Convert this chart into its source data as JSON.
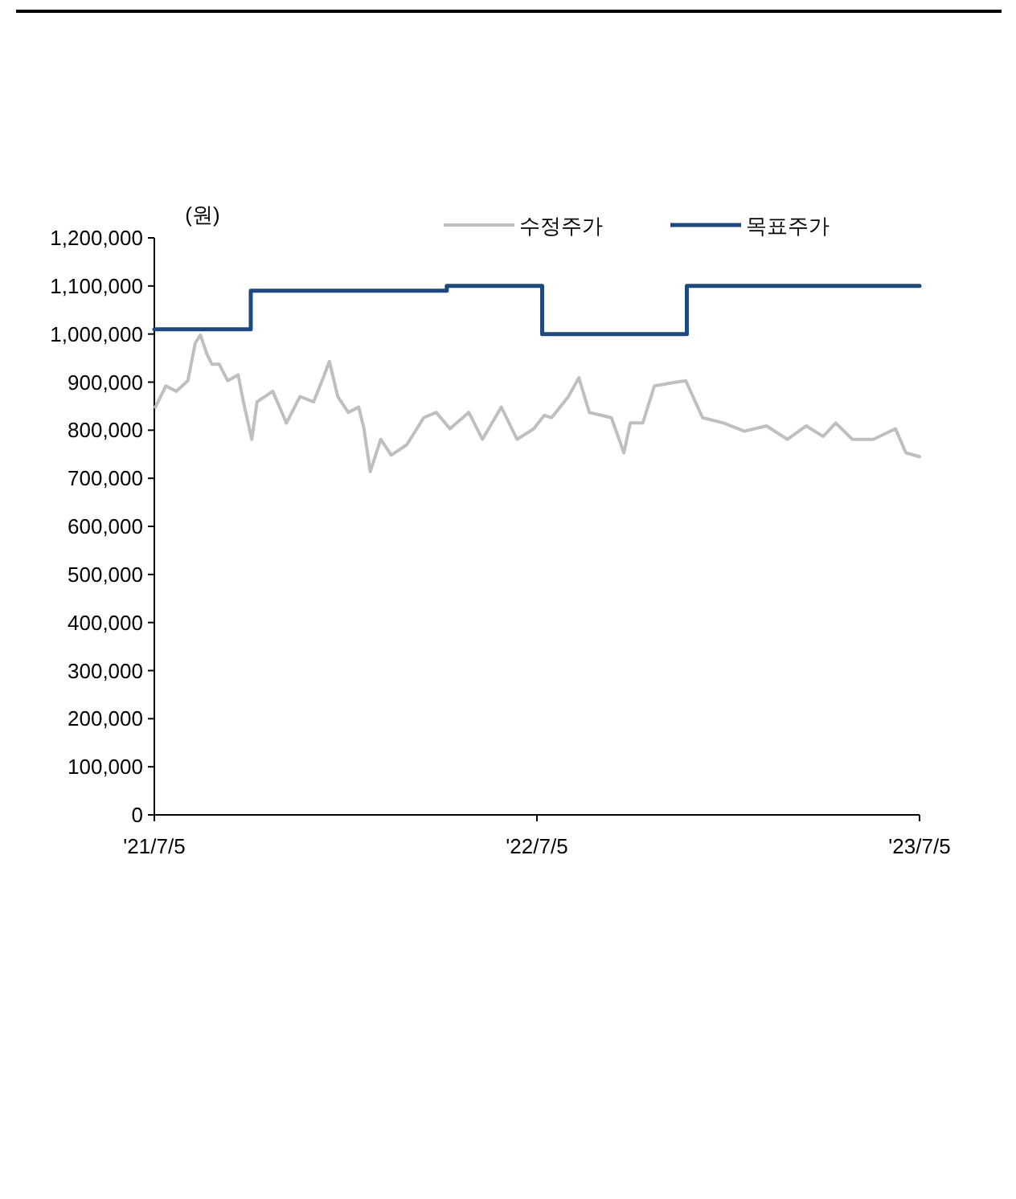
{
  "chart_data": {
    "type": "line",
    "ylabel": "(원)",
    "legend": "top",
    "marker": "none",
    "line_style": "solid",
    "grid": false,
    "xlim": [
      "2021-07-05",
      "2023-07-05"
    ],
    "xticks": [
      {
        "value": "2021-07-05",
        "label": "'21/7/5"
      },
      {
        "value": "2022-07-05",
        "label": "'22/7/5"
      },
      {
        "value": "2023-07-05",
        "label": "'23/7/5"
      }
    ],
    "ylim": [
      0,
      1200000
    ],
    "yticks": [
      {
        "value": 0,
        "label": "0"
      },
      {
        "value": 100000,
        "label": "100,000"
      },
      {
        "value": 200000,
        "label": "200,000"
      },
      {
        "value": 300000,
        "label": "300,000"
      },
      {
        "value": 400000,
        "label": "400,000"
      },
      {
        "value": 500000,
        "label": "500,000"
      },
      {
        "value": 600000,
        "label": "600,000"
      },
      {
        "value": 700000,
        "label": "700,000"
      },
      {
        "value": 800000,
        "label": "800,000"
      },
      {
        "value": 900000,
        "label": "900,000"
      },
      {
        "value": 1000000,
        "label": "1,000,000"
      },
      {
        "value": 1100000,
        "label": "1,100,000"
      },
      {
        "value": 1200000,
        "label": "1,200,000"
      }
    ],
    "series": [
      {
        "name": "수정주가",
        "color": "#bfbfbf",
        "x": [
          "2021-07-06",
          "2021-07-16",
          "2021-07-26",
          "2021-08-06",
          "2021-08-13",
          "2021-08-18",
          "2021-08-24",
          "2021-08-29",
          "2021-09-05",
          "2021-09-13",
          "2021-09-23",
          "2021-09-28",
          "2021-10-06",
          "2021-10-11",
          "2021-10-26",
          "2021-11-08",
          "2021-11-21",
          "2021-12-04",
          "2021-12-12",
          "2021-12-19",
          "2021-12-27",
          "2022-01-06",
          "2022-01-16",
          "2022-01-21",
          "2022-01-27",
          "2022-02-06",
          "2022-02-16",
          "2022-03-03",
          "2022-03-19",
          "2022-03-31",
          "2022-04-13",
          "2022-05-01",
          "2022-05-14",
          "2022-06-01",
          "2022-06-16",
          "2022-07-02",
          "2022-07-12",
          "2022-07-19",
          "2022-08-04",
          "2022-08-14",
          "2022-08-24",
          "2022-09-14",
          "2022-09-26",
          "2022-10-02",
          "2022-10-14",
          "2022-10-25",
          "2022-11-09",
          "2022-11-24",
          "2022-12-10",
          "2022-12-30",
          "2023-01-19",
          "2023-02-09",
          "2023-03-01",
          "2023-03-19",
          "2023-04-04",
          "2023-04-16",
          "2023-05-02",
          "2023-05-22",
          "2023-06-12",
          "2023-06-22",
          "2023-07-05"
        ],
        "values": [
          848000,
          892000,
          881000,
          903000,
          981000,
          998000,
          959000,
          937000,
          937000,
          903000,
          915000,
          859000,
          781000,
          859000,
          881000,
          815000,
          870000,
          859000,
          903000,
          943000,
          870000,
          837000,
          848000,
          803000,
          714000,
          781000,
          748000,
          770000,
          826000,
          837000,
          803000,
          837000,
          781000,
          848000,
          781000,
          803000,
          831000,
          826000,
          870000,
          909000,
          837000,
          826000,
          753000,
          815000,
          815000,
          892000,
          898000,
          903000,
          826000,
          815000,
          798000,
          809000,
          781000,
          809000,
          787000,
          815000,
          781000,
          781000,
          803000,
          753000,
          745000
        ]
      },
      {
        "name": "목표주가",
        "color": "#1f497d",
        "type": "step",
        "x": [
          "2021-07-05",
          "2021-10-05",
          "2022-04-10",
          "2022-07-10",
          "2022-11-25",
          "2023-07-05"
        ],
        "values": [
          1010000,
          1090000,
          1100000,
          1000000,
          1100000,
          1100000
        ]
      }
    ]
  }
}
